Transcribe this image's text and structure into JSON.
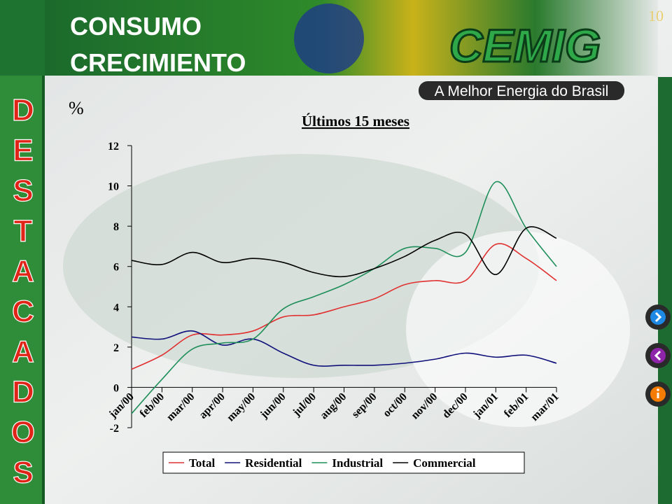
{
  "slide": {
    "heading": [
      "CONSUMO",
      "CRECIMIENTO"
    ],
    "page_number": "10",
    "logo": "CEMIG",
    "slogan": "A Melhor Energia do Brasil",
    "side_letters": [
      "D",
      "E",
      "S",
      "T",
      "A",
      "C",
      "A",
      "D",
      "O",
      "S"
    ]
  },
  "chart_data": {
    "type": "line",
    "title": "Últimos 15 meses",
    "y_label": "%",
    "categories": [
      "jan/00",
      "feb/00",
      "mar/00",
      "apr/00",
      "may/00",
      "jun/00",
      "jul/00",
      "aug/00",
      "sep/00",
      "oct/00",
      "nov/00",
      "dec/00",
      "jan/01",
      "feb/01",
      "mar/01"
    ],
    "series": [
      {
        "name": "Total",
        "color": "#e03030",
        "values": [
          0.9,
          1.6,
          2.6,
          2.6,
          2.8,
          3.5,
          3.6,
          4.0,
          4.4,
          5.1,
          5.3,
          5.3,
          7.1,
          6.4,
          5.3
        ]
      },
      {
        "name": "Residential",
        "color": "#10107a",
        "values": [
          2.5,
          2.4,
          2.8,
          2.1,
          2.4,
          1.7,
          1.1,
          1.1,
          1.1,
          1.2,
          1.4,
          1.7,
          1.5,
          1.6,
          1.2
        ]
      },
      {
        "name": "Industrial",
        "color": "#1f8f5a",
        "values": [
          -1.3,
          0.4,
          1.9,
          2.2,
          2.4,
          3.9,
          4.5,
          5.1,
          5.9,
          6.9,
          6.9,
          6.7,
          10.2,
          7.9,
          6.0
        ]
      },
      {
        "name": "Commercial",
        "color": "#000000",
        "values": [
          6.3,
          6.1,
          6.7,
          6.2,
          6.4,
          6.2,
          5.7,
          5.5,
          5.9,
          6.5,
          7.3,
          7.6,
          5.6,
          7.9,
          7.4
        ]
      }
    ],
    "ylim": [
      -2,
      12
    ],
    "yticks": [
      -2,
      0,
      2,
      4,
      6,
      8,
      10,
      12
    ],
    "grid": false,
    "legend": "bottom"
  }
}
